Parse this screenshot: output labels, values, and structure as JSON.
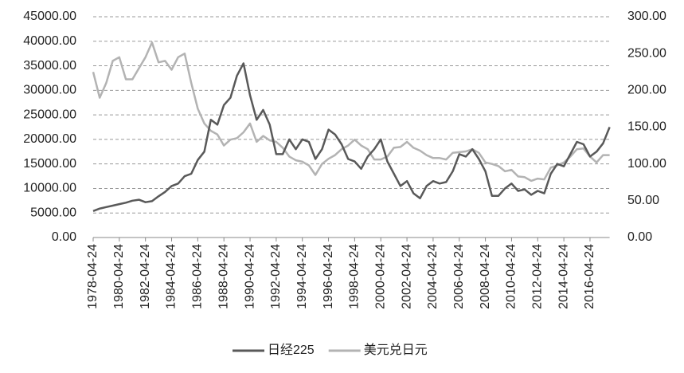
{
  "chart_data": {
    "type": "line",
    "categories": [
      "1978-04-24",
      null,
      null,
      null,
      "1980-04-24",
      null,
      null,
      null,
      "1982-04-24",
      null,
      null,
      null,
      "1984-04-24",
      null,
      null,
      null,
      "1986-04-24",
      null,
      null,
      null,
      "1988-04-24",
      null,
      null,
      null,
      "1990-04-24",
      null,
      null,
      null,
      "1992-04-24",
      null,
      null,
      null,
      "1994-04-24",
      null,
      null,
      null,
      "1996-04-24",
      null,
      null,
      null,
      "1998-04-24",
      null,
      null,
      null,
      "2000-04-24",
      null,
      null,
      null,
      "2002-04-24",
      null,
      null,
      null,
      "2004-04-24",
      null,
      null,
      null,
      "2006-04-24",
      null,
      null,
      null,
      "2008-04-24",
      null,
      null,
      null,
      "2010-04-24",
      null,
      null,
      null,
      "2012-04-24",
      null,
      null,
      null,
      "2014-04-24",
      null,
      null,
      null,
      "2016-04-24",
      null,
      null,
      null
    ],
    "series": [
      {
        "name": "日经225",
        "color": "#595959",
        "values": [
          5400,
          5900,
          6200,
          6500,
          6800,
          7100,
          7500,
          7700,
          7200,
          7400,
          8400,
          9300,
          10500,
          11000,
          12500,
          13000,
          15800,
          17500,
          24000,
          23000,
          27000,
          28500,
          33000,
          35500,
          29000,
          24000,
          26000,
          23000,
          17000,
          17000,
          20000,
          18000,
          20000,
          19500,
          16000,
          18000,
          22000,
          21000,
          19000,
          16000,
          15500,
          14000,
          16500,
          18000,
          20000,
          15500,
          13000,
          10500,
          11500,
          9000,
          8000,
          10500,
          11500,
          11000,
          11300,
          13500,
          17000,
          16500,
          18000,
          16000,
          13500,
          8500,
          8500,
          10000,
          11000,
          9500,
          9800,
          8700,
          9500,
          9000,
          13000,
          15000,
          14500,
          17000,
          19500,
          19000,
          16500,
          17500,
          19200,
          22500
        ]
      },
      {
        "name": "美元兑日元",
        "color": "#b3b3b3",
        "axis": "y2",
        "values": [
          225,
          190,
          210,
          240,
          245,
          215,
          215,
          230,
          245,
          265,
          238,
          240,
          228,
          245,
          250,
          210,
          175,
          155,
          145,
          140,
          125,
          133,
          135,
          143,
          155,
          130,
          138,
          132,
          130,
          122,
          110,
          105,
          103,
          98,
          85,
          100,
          107,
          112,
          120,
          125,
          133,
          125,
          120,
          106,
          106,
          110,
          122,
          123,
          130,
          122,
          118,
          112,
          108,
          108,
          106,
          115,
          116,
          117,
          120,
          115,
          102,
          100,
          97,
          90,
          92,
          83,
          82,
          77,
          80,
          79,
          95,
          98,
          102,
          110,
          120,
          121,
          110,
          102,
          112,
          112
        ]
      }
    ],
    "ylim": [
      0,
      45000
    ],
    "yticks": [
      {
        "value": 0,
        "label": "0.00"
      },
      {
        "value": 5000,
        "label": "5000.00"
      },
      {
        "value": 10000,
        "label": "10000.00"
      },
      {
        "value": 15000,
        "label": "15000.00"
      },
      {
        "value": 20000,
        "label": "20000.00"
      },
      {
        "value": 25000,
        "label": "25000.00"
      },
      {
        "value": 30000,
        "label": "30000.00"
      },
      {
        "value": 35000,
        "label": "35000.00"
      },
      {
        "value": 40000,
        "label": "40000.00"
      },
      {
        "value": 45000,
        "label": "45000.00"
      }
    ],
    "y2lim": [
      0,
      300
    ],
    "y2ticks": [
      {
        "value": 0,
        "label": "0.00"
      },
      {
        "value": 50,
        "label": "50.00"
      },
      {
        "value": 100,
        "label": "100.00"
      },
      {
        "value": 150,
        "label": "150.00"
      },
      {
        "value": 200,
        "label": "200.00"
      },
      {
        "value": 250,
        "label": "250.00"
      },
      {
        "value": 300,
        "label": "300.00"
      }
    ],
    "grid": true,
    "legend": "bottom"
  }
}
